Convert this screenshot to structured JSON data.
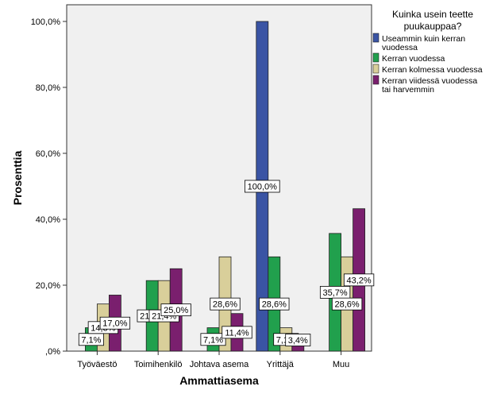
{
  "chart_data": {
    "type": "bar",
    "xlabel": "Ammattiasema",
    "ylabel": "Prosenttia",
    "ylim": [
      0,
      100
    ],
    "yticks": [
      0,
      20,
      40,
      60,
      80,
      100
    ],
    "ytick_labels": [
      ",0%",
      "20,0%",
      "40,0%",
      "60,0%",
      "80,0%",
      "100,0%"
    ],
    "grid": false,
    "legend_position": "top-right",
    "legend_title": "Kuinka usein teette puukauppaa?",
    "categories": [
      "Työväestö",
      "Toimihenkilö",
      "Johtava asema",
      "Yrittäjä",
      "Muu"
    ],
    "series": [
      {
        "name": "Useammin kuin kerran vuodessa",
        "color": "#3a54a4",
        "values": [
          null,
          null,
          null,
          100.0,
          null
        ],
        "labels": [
          "",
          "",
          "",
          "100,0%",
          ""
        ]
      },
      {
        "name": "Kerran vuodessa",
        "color": "#21a04d",
        "values": [
          7.1,
          21.4,
          7.1,
          28.6,
          35.7
        ],
        "labels": [
          "7,1%",
          "21,4%",
          "7,1%",
          "28,6%",
          "35,7%"
        ]
      },
      {
        "name": "Kerran kolmessa vuodessa",
        "color": "#d9cf9a",
        "values": [
          14.3,
          21.4,
          28.6,
          7.1,
          28.6
        ],
        "labels": [
          "14,3%",
          "21,4%",
          "28,6%",
          "7,1%",
          "28,6%"
        ]
      },
      {
        "name": "Kerran viidessä vuodessa tai harvemmin",
        "color": "#7a1f6e",
        "values": [
          17.0,
          25.0,
          11.4,
          3.4,
          43.2
        ],
        "labels": [
          "17,0%",
          "25,0%",
          "11,4%",
          "3,4%",
          "43,2%"
        ]
      }
    ]
  }
}
